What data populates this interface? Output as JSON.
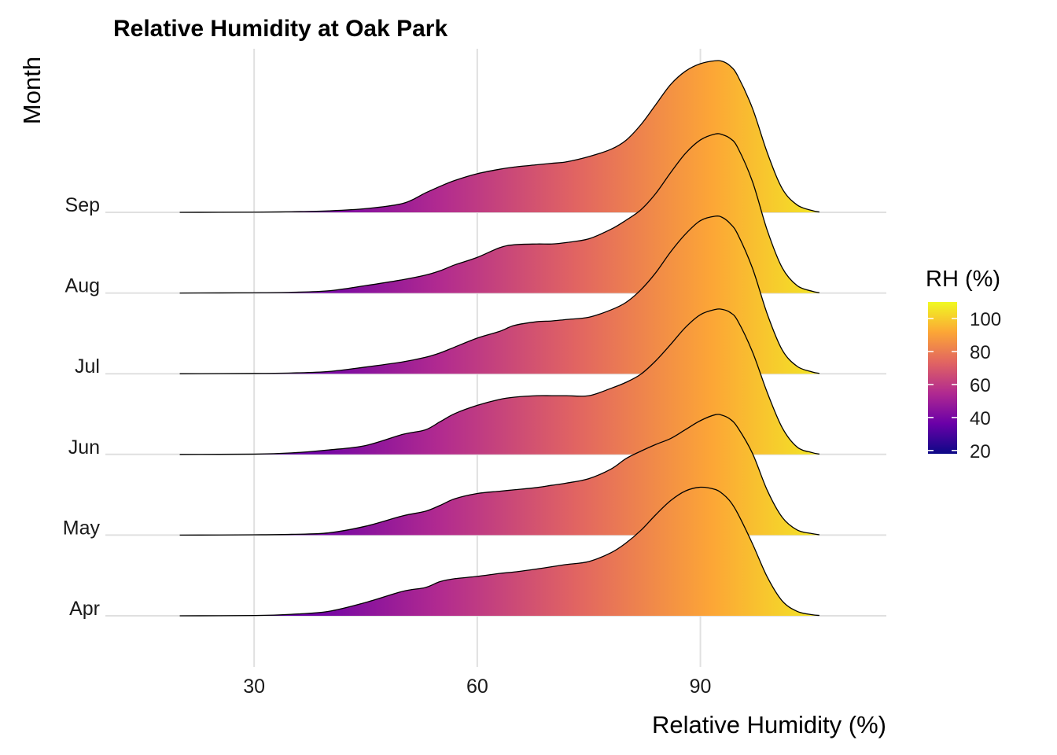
{
  "chart_data": {
    "type": "ridgeline",
    "title": "Relative Humidity at Oak Park",
    "xlabel": "Relative Humidity (%)",
    "ylabel": "Month",
    "xlim": [
      10,
      115
    ],
    "x_ticks": [
      30,
      60,
      90
    ],
    "categories": [
      "Apr",
      "May",
      "Jun",
      "Jul",
      "Aug",
      "Sep"
    ],
    "x": [
      20,
      30,
      35,
      40,
      45,
      50,
      53,
      55,
      57,
      60,
      63,
      65,
      68,
      70,
      72,
      75,
      78,
      80,
      82,
      84,
      86,
      88,
      90,
      92,
      93,
      94,
      95,
      97,
      99,
      101,
      103,
      105,
      106
    ],
    "series": [
      {
        "name": "Apr",
        "values": [
          0,
          0.004,
          0.02,
          0.06,
          0.18,
          0.33,
          0.38,
          0.46,
          0.5,
          0.53,
          0.57,
          0.59,
          0.63,
          0.66,
          0.69,
          0.73,
          0.85,
          0.98,
          1.15,
          1.36,
          1.55,
          1.68,
          1.73,
          1.7,
          1.64,
          1.54,
          1.38,
          0.97,
          0.52,
          0.2,
          0.06,
          0.015,
          0.005
        ]
      },
      {
        "name": "May",
        "values": [
          0,
          0.004,
          0.01,
          0.03,
          0.12,
          0.26,
          0.32,
          0.4,
          0.49,
          0.56,
          0.59,
          0.61,
          0.64,
          0.67,
          0.7,
          0.76,
          0.89,
          1.03,
          1.13,
          1.22,
          1.3,
          1.42,
          1.54,
          1.62,
          1.61,
          1.56,
          1.45,
          1.1,
          0.6,
          0.24,
          0.07,
          0.02,
          0.005
        ]
      },
      {
        "name": "Jun",
        "values": [
          0,
          0.004,
          0.02,
          0.06,
          0.12,
          0.27,
          0.33,
          0.44,
          0.55,
          0.66,
          0.74,
          0.77,
          0.79,
          0.79,
          0.79,
          0.79,
          0.89,
          0.97,
          1.08,
          1.26,
          1.48,
          1.71,
          1.88,
          1.95,
          1.95,
          1.91,
          1.8,
          1.38,
          0.83,
          0.36,
          0.1,
          0.025,
          0.005
        ]
      },
      {
        "name": "Jul",
        "values": [
          0,
          0.004,
          0.01,
          0.03,
          0.09,
          0.16,
          0.22,
          0.28,
          0.36,
          0.48,
          0.57,
          0.65,
          0.7,
          0.71,
          0.73,
          0.76,
          0.86,
          0.96,
          1.13,
          1.36,
          1.64,
          1.88,
          2.06,
          2.12,
          2.1,
          2.02,
          1.88,
          1.42,
          0.8,
          0.32,
          0.1,
          0.025,
          0.005
        ]
      },
      {
        "name": "Aug",
        "values": [
          0,
          0.004,
          0.01,
          0.03,
          0.1,
          0.18,
          0.24,
          0.3,
          0.38,
          0.48,
          0.61,
          0.65,
          0.66,
          0.66,
          0.68,
          0.73,
          0.86,
          0.98,
          1.12,
          1.34,
          1.62,
          1.88,
          2.06,
          2.14,
          2.13,
          2.08,
          1.96,
          1.5,
          0.84,
          0.34,
          0.1,
          0.025,
          0.005
        ]
      },
      {
        "name": "Sep",
        "values": [
          0,
          0.003,
          0.008,
          0.02,
          0.05,
          0.12,
          0.26,
          0.35,
          0.43,
          0.52,
          0.58,
          0.61,
          0.64,
          0.66,
          0.68,
          0.75,
          0.85,
          0.97,
          1.18,
          1.45,
          1.72,
          1.9,
          2.0,
          2.04,
          2.03,
          1.97,
          1.84,
          1.4,
          0.8,
          0.32,
          0.1,
          0.025,
          0.005
        ]
      }
    ],
    "fill_scale": {
      "name": "plasma",
      "stops": [
        "#0d0887",
        "#6a00a8",
        "#b12a90",
        "#e16462",
        "#fca636",
        "#f0f921"
      ]
    },
    "legend": {
      "title": "RH (%)",
      "position": "right",
      "range": [
        18,
        110
      ],
      "ticks": [
        20,
        40,
        60,
        80,
        100
      ]
    },
    "grid": true
  }
}
